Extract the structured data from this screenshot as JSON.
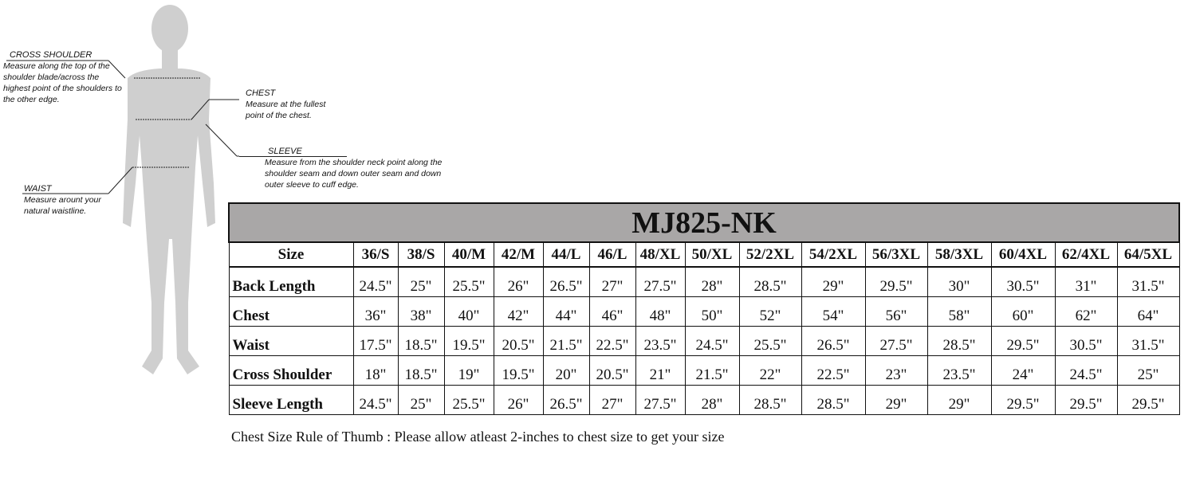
{
  "annotations": {
    "cross_shoulder": {
      "title": "CROSS SHOULDER",
      "text": "Measure along the top of the shoulder blade/across the highest point of the shoulders to the other edge."
    },
    "chest": {
      "title": "CHEST",
      "text": "Measure at the fullest point of the chest."
    },
    "sleeve": {
      "title": "SLEEVE",
      "text": "Measure from the shoulder neck point along the shoulder seam and down outer seam and down outer sleeve to cuff edge."
    },
    "waist": {
      "title": "WAIST",
      "text": "Measure arount your natural waistline."
    }
  },
  "table": {
    "title": "MJ825-NK",
    "header_label": "Size",
    "sizes": [
      "36/S",
      "38/S",
      "40/M",
      "42/M",
      "44/L",
      "46/L",
      "48/XL",
      "50/XL",
      "52/2XL",
      "54/2XL",
      "56/3XL",
      "58/3XL",
      "60/4XL",
      "62/4XL",
      "64/5XL"
    ],
    "rows": [
      {
        "label": "Back Length",
        "values": [
          "24.5\"",
          "25\"",
          "25.5\"",
          "26\"",
          "26.5\"",
          "27\"",
          "27.5\"",
          "28\"",
          "28.5\"",
          "29\"",
          "29.5\"",
          "30\"",
          "30.5\"",
          "31\"",
          "31.5\""
        ]
      },
      {
        "label": "Chest",
        "values": [
          "36\"",
          "38\"",
          "40\"",
          "42\"",
          "44\"",
          "46\"",
          "48\"",
          "50\"",
          "52\"",
          "54\"",
          "56\"",
          "58\"",
          "60\"",
          "62\"",
          "64\""
        ]
      },
      {
        "label": "Waist",
        "values": [
          "17.5\"",
          "18.5\"",
          "19.5\"",
          "20.5\"",
          "21.5\"",
          "22.5\"",
          "23.5\"",
          "24.5\"",
          "25.5\"",
          "26.5\"",
          "27.5\"",
          "28.5\"",
          "29.5\"",
          "30.5\"",
          "31.5\""
        ]
      },
      {
        "label": "Cross Shoulder",
        "values": [
          "18\"",
          "18.5\"",
          "19\"",
          "19.5\"",
          "20\"",
          "20.5\"",
          "21\"",
          "21.5\"",
          "22\"",
          "22.5\"",
          "23\"",
          "23.5\"",
          "24\"",
          "24.5\"",
          "25\""
        ]
      },
      {
        "label": "Sleeve Length",
        "values": [
          "24.5\"",
          "25\"",
          "25.5\"",
          "26\"",
          "26.5\"",
          "27\"",
          "27.5\"",
          "28\"",
          "28.5\"",
          "28.5\"",
          "29\"",
          "29\"",
          "29.5\"",
          "29.5\"",
          "29.5\""
        ]
      }
    ]
  },
  "note": "Chest Size Rule of Thumb : Please allow atleast 2-inches to chest size to get your size",
  "colors": {
    "title_bg": "#a9a7a7",
    "silhouette": "#cfcfcf"
  }
}
